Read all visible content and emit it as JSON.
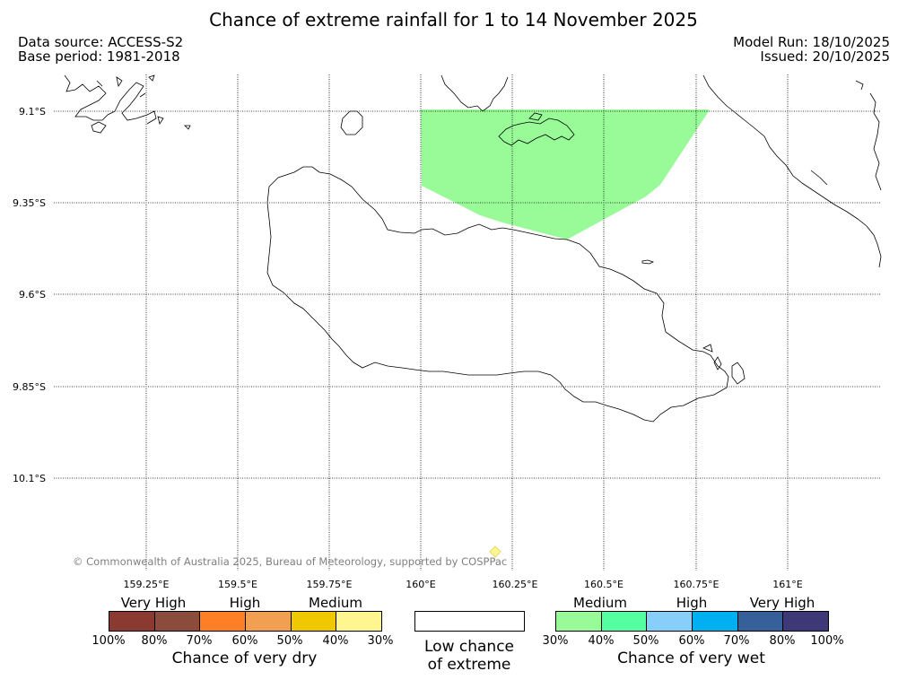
{
  "title": "Chance of extreme rainfall for 1 to 14 November 2025",
  "meta": {
    "data_source": "Data source: ACCESS-S2",
    "base_period": "Base period: 1981-2018",
    "model_run": "Model Run: 18/10/2025",
    "issued": "Issued: 20/10/2025"
  },
  "map": {
    "lat_labels": [
      "9.1°S",
      "9.35°S",
      "9.6°S",
      "9.85°S",
      "10.1°S"
    ],
    "lon_labels": [
      "159.25°E",
      "159.5°E",
      "159.75°E",
      "160°E",
      "160.25°E",
      "160.5°E",
      "160.75°E",
      "161°E"
    ],
    "wet_area_color": "#98fb98",
    "copyright": "© Commonwealth of Australia 2025, Bureau of Meteorology, supported by COSPPac"
  },
  "legend": {
    "dry": {
      "categories": [
        "Very High",
        "High",
        "Medium"
      ],
      "colors": [
        "#8b3a32",
        "#8b4c3b",
        "#ff7f27",
        "#f0a050",
        "#f0c800",
        "#fff68f"
      ],
      "ticks": [
        "100%",
        "80%",
        "70%",
        "60%",
        "50%",
        "40%",
        "30%"
      ],
      "caption": "Chance of very dry"
    },
    "low": {
      "caption_line1": "Low chance",
      "caption_line2": "of extreme"
    },
    "wet": {
      "categories": [
        "Medium",
        "High",
        "Very High"
      ],
      "colors": [
        "#98fb98",
        "#54ffa0",
        "#87cefa",
        "#00b0f0",
        "#35609a",
        "#3f3877"
      ],
      "ticks": [
        "30%",
        "40%",
        "50%",
        "60%",
        "70%",
        "80%",
        "100%"
      ],
      "caption": "Chance of very wet"
    }
  }
}
